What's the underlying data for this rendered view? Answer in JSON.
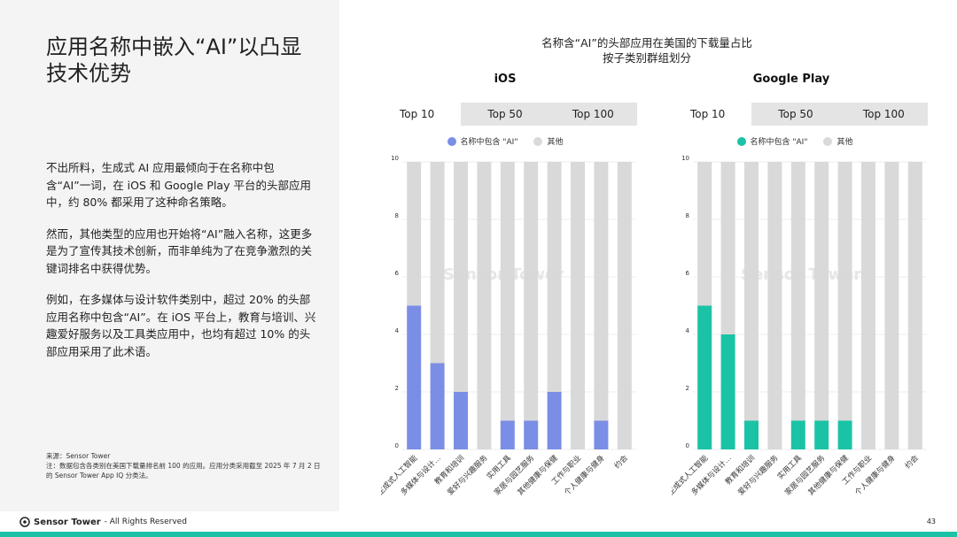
{
  "headline": "应用名称中嵌入“AI”以凸显技术优势",
  "paragraphs": [
    "不出所料，生成式 AI 应用最倾向于在名称中包含“AI”一词，在 iOS 和 Google Play 平台的头部应用中，约 80% 都采用了这种命名策略。",
    "然而，其他类型的应用也开始将“AI”融入名称，这更多是为了宣传其技术创新，而非单纯为了在竞争激烈的关键词排名中获得优势。",
    "例如，在多媒体与设计软件类别中，超过 20% 的头部应用名称中包含“AI”。在 iOS 平台上，教育与培训、兴趣爱好服务以及工具类应用中，也均有超过 10% 的头部应用采用了此术语。"
  ],
  "source": {
    "line1": "来源：Sensor Tower",
    "line2": "注：数据包含各类别在美国下载量排名前 100 的应用。应用分类采用截至 2025 年 7 月 2 日的 Sensor Tower App IQ 分类法。"
  },
  "chart_title_line1": "名称含“AI”的头部应用在美国的下载量占比",
  "chart_title_line2": "按子类别群组划分",
  "tabs": [
    "Top 10",
    "Top 50",
    "Top 100"
  ],
  "legend": {
    "ai": "名称中包含 \"AI\"",
    "other": "其他"
  },
  "watermark": "Sensor Tower",
  "footer": {
    "brand": "Sensor Tower",
    "rights": " - All Rights Reserved",
    "page": "43"
  },
  "colors": {
    "ios": "#7b8ee6",
    "google": "#1bc3a6",
    "other": "#d9d9d9"
  },
  "chart_data": [
    {
      "type": "bar",
      "title": "iOS",
      "stacked": true,
      "selected_tab": "Top 10",
      "categories": [
        "生成式人工智能",
        "多媒体与设计…",
        "教育和培训",
        "爱好与兴趣服务",
        "实用工具",
        "家居与园艺服务",
        "其他健康与保健",
        "工作与职业",
        "个人健康与健身",
        "约会"
      ],
      "series": [
        {
          "name": "名称中包含 \"AI\"",
          "values": [
            5,
            3,
            2,
            0,
            1,
            1,
            2,
            0,
            1,
            0
          ]
        },
        {
          "name": "其他",
          "values": [
            5,
            7,
            8,
            10,
            9,
            9,
            8,
            10,
            9,
            10
          ]
        }
      ],
      "yticks": [
        "0",
        "2",
        "4",
        "6",
        "8",
        "10"
      ],
      "ylim": [
        0,
        10
      ],
      "legend_position": "top-center"
    },
    {
      "type": "bar",
      "title": "Google Play",
      "stacked": true,
      "selected_tab": "Top 10",
      "categories": [
        "生成式人工智能",
        "多媒体与设计…",
        "教育和培训",
        "爱好与兴趣服务",
        "实用工具",
        "家居与园艺服务",
        "其他健康与保健",
        "工作与职业",
        "个人健康与健身",
        "约会"
      ],
      "series": [
        {
          "name": "名称中包含 \"AI\"",
          "values": [
            5,
            4,
            1,
            0,
            1,
            1,
            1,
            0,
            0,
            0
          ]
        },
        {
          "name": "其他",
          "values": [
            5,
            6,
            9,
            10,
            9,
            9,
            9,
            10,
            10,
            10
          ]
        }
      ],
      "yticks": [
        "0",
        "2",
        "4",
        "6",
        "8",
        "10"
      ],
      "ylim": [
        0,
        10
      ],
      "legend_position": "top-center"
    }
  ]
}
